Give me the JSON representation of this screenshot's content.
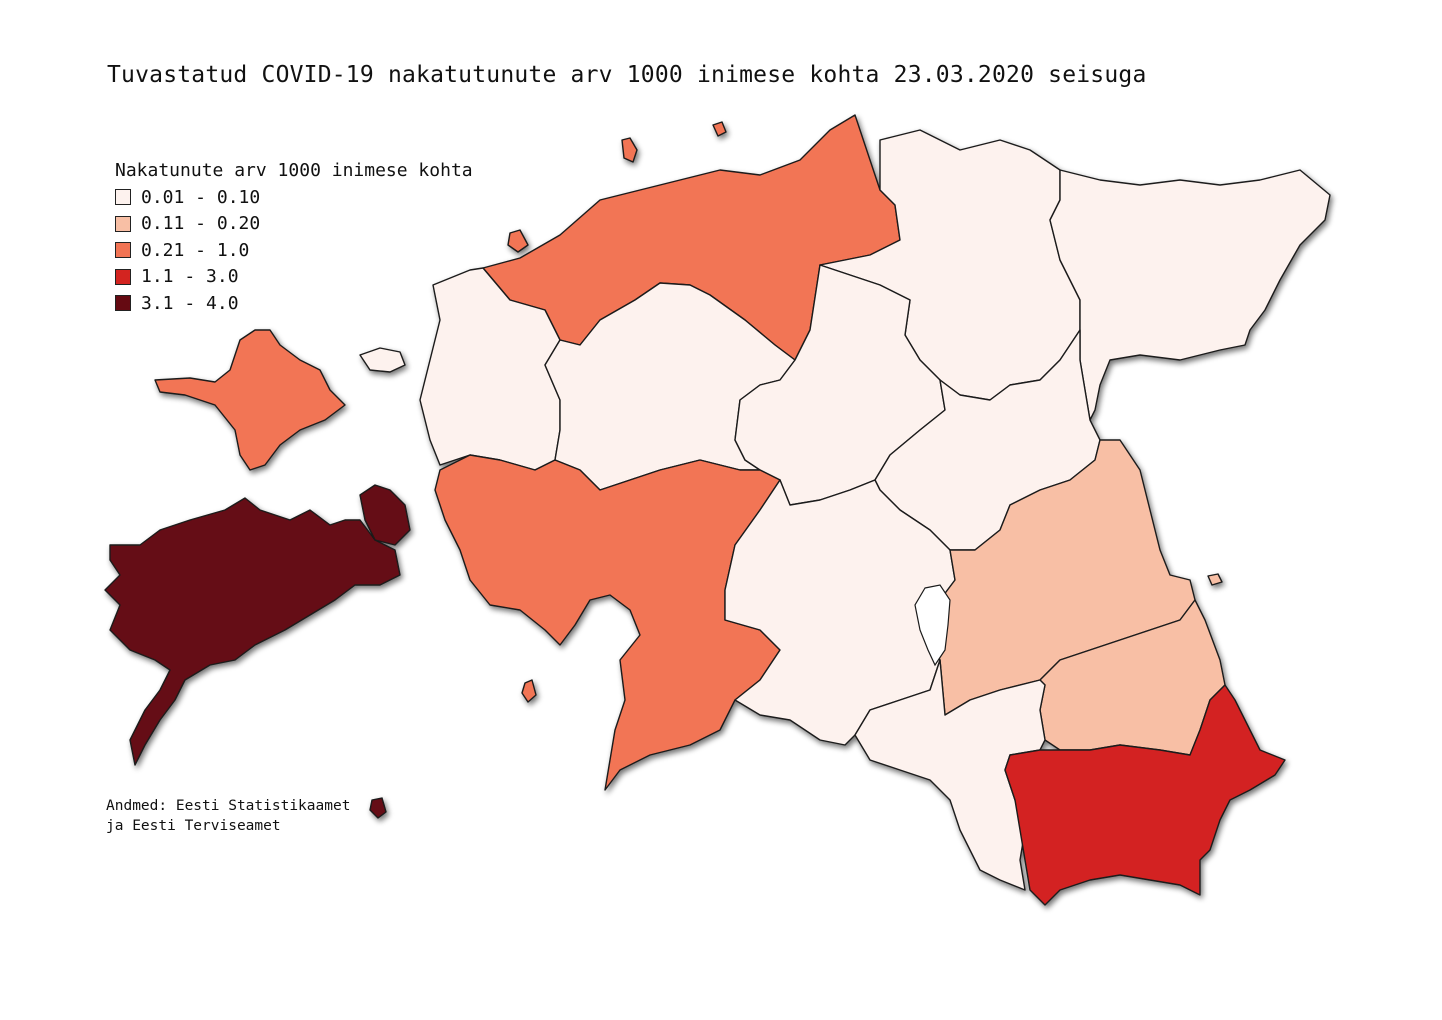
{
  "title": "Tuvastatud COVID-19 nakatutunute arv 1000 inimese kohta 23.03.2020 seisuga",
  "legend": {
    "title": "Nakatunute arv 1000 inimese kohta",
    "items": [
      {
        "label": "0.01 - 0.10",
        "color": "#fdf2ee"
      },
      {
        "label": "0.11 - 0.20",
        "color": "#f8bfa5"
      },
      {
        "label": "0.21 - 1.0",
        "color": "#f27454"
      },
      {
        "label": "1.1 - 3.0",
        "color": "#d32420"
      },
      {
        "label": "3.1 - 4.0",
        "color": "#650a12"
      }
    ]
  },
  "source": {
    "line1": "Andmed: Eesti Statistikaamet",
    "line2": "ja Eesti Terviseamet"
  }
}
